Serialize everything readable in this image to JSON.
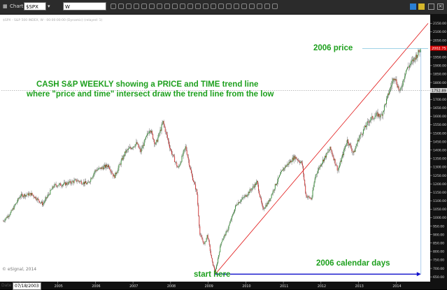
{
  "toolbar": {
    "window_title": "Chart",
    "symbol": "$SPX",
    "interval": "W"
  },
  "chart": {
    "header": "$SPX - S&P 500 INDEX, W - 00:00:00:00 (Dynamic) (relayed: 1)",
    "copyright": "© eSignal, 2014",
    "date_field": "07/18/2003",
    "date_field_prefix": "Date",
    "annotation_main_line1": "CASH S&P WEEKLY showing a PRICE and TIME trend line",
    "annotation_main_line2": "where \"price and time\" intersect draw the trend line from the low",
    "annotation_price": "2006 price",
    "annotation_start": "start here",
    "annotation_days": "2006 calendar days",
    "price_badge": "2002.75",
    "price_badge_color": "#d40000",
    "text_color": "#1ea01e",
    "trendline_color": "#e01010",
    "arrow_color": "#1010cc"
  },
  "chart_data": {
    "type": "candlestick",
    "x_tick_labels": [
      "2004",
      "2005",
      "2006",
      "2007",
      "2008",
      "2009",
      "2010",
      "2011",
      "2012",
      "2013",
      "2014"
    ],
    "y_ticks": [
      650,
      700,
      750,
      800,
      850,
      900,
      950,
      1000,
      1050,
      1100,
      1150,
      1200,
      1250,
      1300,
      1350,
      1400,
      1450,
      1500,
      1550,
      1600,
      1650,
      1700,
      1750,
      1800,
      1850,
      1900,
      1950,
      2000,
      2050,
      2100,
      2150
    ],
    "ylim": [
      630,
      2160
    ],
    "xlim": [
      2003.5,
      2014.85
    ],
    "grid": false,
    "current_price": 2002.75,
    "reference_price": 1752.89,
    "price_path": [
      [
        2003.55,
        980
      ],
      [
        2003.75,
        1030
      ],
      [
        2004.0,
        1130
      ],
      [
        2004.3,
        1140
      ],
      [
        2004.6,
        1080
      ],
      [
        2004.9,
        1190
      ],
      [
        2005.2,
        1200
      ],
      [
        2005.5,
        1220
      ],
      [
        2005.8,
        1200
      ],
      [
        2006.0,
        1280
      ],
      [
        2006.35,
        1310
      ],
      [
        2006.5,
        1240
      ],
      [
        2006.8,
        1390
      ],
      [
        2007.1,
        1440
      ],
      [
        2007.2,
        1390
      ],
      [
        2007.45,
        1530
      ],
      [
        2007.6,
        1430
      ],
      [
        2007.8,
        1565
      ],
      [
        2008.0,
        1400
      ],
      [
        2008.2,
        1290
      ],
      [
        2008.4,
        1420
      ],
      [
        2008.55,
        1260
      ],
      [
        2008.7,
        1150
      ],
      [
        2008.78,
        900
      ],
      [
        2008.9,
        840
      ],
      [
        2008.98,
        900
      ],
      [
        2009.1,
        740
      ],
      [
        2009.19,
        676
      ],
      [
        2009.35,
        860
      ],
      [
        2009.5,
        920
      ],
      [
        2009.75,
        1080
      ],
      [
        2010.0,
        1130
      ],
      [
        2010.3,
        1210
      ],
      [
        2010.45,
        1050
      ],
      [
        2010.6,
        1090
      ],
      [
        2010.8,
        1200
      ],
      [
        2011.0,
        1290
      ],
      [
        2011.3,
        1360
      ],
      [
        2011.5,
        1320
      ],
      [
        2011.6,
        1130
      ],
      [
        2011.75,
        1110
      ],
      [
        2011.85,
        1250
      ],
      [
        2012.0,
        1320
      ],
      [
        2012.25,
        1410
      ],
      [
        2012.45,
        1280
      ],
      [
        2012.7,
        1460
      ],
      [
        2012.87,
        1380
      ],
      [
        2013.0,
        1470
      ],
      [
        2013.3,
        1580
      ],
      [
        2013.5,
        1610
      ],
      [
        2013.6,
        1600
      ],
      [
        2013.75,
        1700
      ],
      [
        2013.95,
        1840
      ],
      [
        2014.1,
        1740
      ],
      [
        2014.25,
        1870
      ],
      [
        2014.45,
        1930
      ],
      [
        2014.6,
        1980
      ],
      [
        2014.66,
        2002
      ]
    ],
    "trendline": {
      "start": [
        2009.19,
        666
      ],
      "end": [
        2014.85,
        2150
      ]
    },
    "price_marker_line": {
      "x_start": 2013.1,
      "x_end": 2014.85,
      "y": 2000
    },
    "reference_line": {
      "y": 1752.89
    },
    "time_arrow": {
      "x_start": 2009.19,
      "x_end": 2014.66,
      "y": 666
    },
    "vertical_marker": {
      "x": 2014.66,
      "y_top": 1990,
      "y_bottom": 666
    }
  }
}
